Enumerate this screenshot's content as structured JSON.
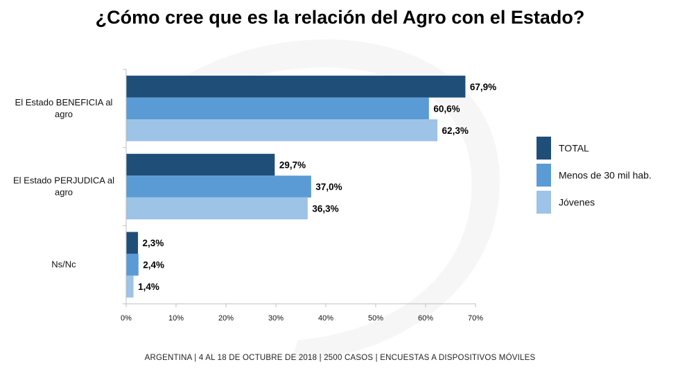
{
  "title": "¿Cómo cree que es la relación del Agro con el Estado?",
  "footer": "ARGENTINA | 4 AL 18 DE OCTUBRE DE 2018 | 2500 CASOS | ENCUESTAS A DISPOSITIVOS MÓVILES",
  "chart_data": {
    "type": "bar",
    "orientation": "horizontal",
    "categories": [
      [
        "El Estado BENEFICIA al",
        "agro"
      ],
      [
        "El Estado PERJUDICA al",
        "agro"
      ],
      [
        "Ns/Nc"
      ]
    ],
    "series": [
      {
        "name": "TOTAL",
        "color": "#1f4e79",
        "values": [
          67.9,
          29.7,
          2.3
        ],
        "labels": [
          "67,9%",
          "29,7%",
          "2,3%"
        ]
      },
      {
        "name": "Menos de 30 mil hab.",
        "color": "#5b9bd5",
        "values": [
          60.6,
          37.0,
          2.4
        ],
        "labels": [
          "60,6%",
          "37,0%",
          "2,4%"
        ]
      },
      {
        "name": "Jóvenes",
        "color": "#9dc3e6",
        "values": [
          62.3,
          36.3,
          1.4
        ],
        "labels": [
          "62,3%",
          "36,3%",
          "1,4%"
        ]
      }
    ],
    "xlim": [
      0,
      70
    ],
    "xticks": [
      0,
      10,
      20,
      30,
      40,
      50,
      60,
      70
    ],
    "xtick_labels": [
      "0%",
      "10%",
      "20%",
      "30%",
      "40%",
      "50%",
      "60%",
      "70%"
    ],
    "legend_position": "right",
    "grid": false
  }
}
